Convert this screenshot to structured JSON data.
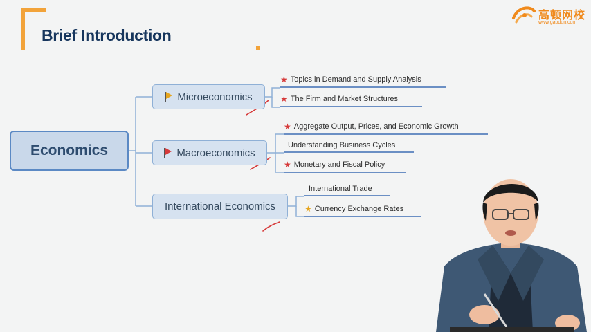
{
  "header": {
    "title": "Brief Introduction"
  },
  "logo": {
    "name_cn": "高顿网校",
    "url": "www.gaodun.com",
    "accent": "#f08a1c"
  },
  "mindmap": {
    "root": "Economics",
    "branches": [
      {
        "label": "Microeconomics",
        "flag_color": "#e6a51e",
        "leaves": [
          {
            "label": "Topics in Demand and Supply Analysis",
            "star": "red"
          },
          {
            "label": "The Firm and Market Structures",
            "star": "red"
          }
        ]
      },
      {
        "label": "Macroeconomics",
        "flag_color": "#d63a3a",
        "leaves": [
          {
            "label": "Aggregate Output, Prices, and Economic Growth",
            "star": "red"
          },
          {
            "label": "Understanding Business Cycles",
            "star": "none"
          },
          {
            "label": "Monetary and Fiscal Policy",
            "star": "red"
          }
        ]
      },
      {
        "label": "International Economics",
        "flag_color": "",
        "leaves": [
          {
            "label": "International Trade",
            "star": "none"
          },
          {
            "label": "Currency Exchange Rates",
            "star": "gold"
          }
        ]
      }
    ]
  },
  "colors": {
    "title": "#17365d",
    "accent_orange": "#f2a33a",
    "connector": "#8fb0d6",
    "pen_mark": "#d63a3a"
  }
}
